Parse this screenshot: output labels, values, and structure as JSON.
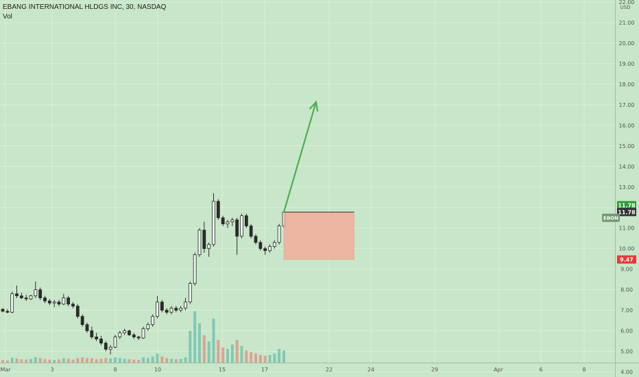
{
  "header": {
    "symbol_line": "EBANG INTERNATIONAL HLDGS INC, 30, NASDAQ",
    "indicator": "Vol"
  },
  "colors": {
    "background": "#c8e6c9",
    "grid": "#dbeedc",
    "up": "#26a69a",
    "down": "#ef5350",
    "candle_body": "#2b2b2b",
    "arrow": "#4caf50",
    "box": "#f4a998",
    "axis_text": "#555555"
  },
  "chart_data": {
    "type": "candlestick",
    "y_unit": "USD",
    "ylim": [
      3.75,
      22.1
    ],
    "y_ticks": [
      "22.00",
      "21.00",
      "20.00",
      "19.00",
      "18.00",
      "17.00",
      "16.00",
      "15.00",
      "14.00",
      "13.00",
      "12.00",
      "11.00",
      "10.00",
      "9.00",
      "8.00",
      "7.00",
      "6.00",
      "5.00",
      "4.00"
    ],
    "x_ticks": [
      "Mar",
      "3",
      "8",
      "10",
      "15",
      "17",
      "22",
      "24",
      "29",
      "Apr",
      "6",
      "8"
    ],
    "price_labels": [
      {
        "label": "11.78",
        "value": 11.78,
        "color": "#2e9e3a"
      },
      {
        "label": "11.78",
        "value": 11.78,
        "color": "#333333"
      },
      {
        "label": "9.47",
        "value": 9.47,
        "color": "#e53935"
      }
    ],
    "symbol_tag": {
      "label": "EBON",
      "value": 11.5
    },
    "candles": [
      [
        7.05,
        7.1,
        6.9,
        6.95
      ],
      [
        6.95,
        7.05,
        6.85,
        6.9
      ],
      [
        6.9,
        7.9,
        6.85,
        7.8
      ],
      [
        7.8,
        8.2,
        7.6,
        7.7
      ],
      [
        7.7,
        7.85,
        7.55,
        7.6
      ],
      [
        7.6,
        7.75,
        7.45,
        7.55
      ],
      [
        7.55,
        7.75,
        7.5,
        7.7
      ],
      [
        7.7,
        8.4,
        7.6,
        8.0
      ],
      [
        8.0,
        8.1,
        7.5,
        7.6
      ],
      [
        7.6,
        7.7,
        7.35,
        7.45
      ],
      [
        7.45,
        7.55,
        7.25,
        7.35
      ],
      [
        7.35,
        7.5,
        7.15,
        7.4
      ],
      [
        7.4,
        7.5,
        7.2,
        7.3
      ],
      [
        7.3,
        7.8,
        7.25,
        7.6
      ],
      [
        7.6,
        7.7,
        7.2,
        7.3
      ],
      [
        7.3,
        7.4,
        7.1,
        7.2
      ],
      [
        7.2,
        7.3,
        6.6,
        6.7
      ],
      [
        6.7,
        6.8,
        6.2,
        6.3
      ],
      [
        6.3,
        6.4,
        5.9,
        6.0
      ],
      [
        6.0,
        6.2,
        5.6,
        5.7
      ],
      [
        5.7,
        5.9,
        5.5,
        5.6
      ],
      [
        5.6,
        5.75,
        5.3,
        5.4
      ],
      [
        5.4,
        5.5,
        5.0,
        5.1
      ],
      [
        5.1,
        5.3,
        4.85,
        5.2
      ],
      [
        5.2,
        5.8,
        5.15,
        5.7
      ],
      [
        5.7,
        6.0,
        5.6,
        5.9
      ],
      [
        5.9,
        6.1,
        5.8,
        6.0
      ],
      [
        6.0,
        6.05,
        5.75,
        5.8
      ],
      [
        5.8,
        5.9,
        5.6,
        5.7
      ],
      [
        5.7,
        5.75,
        5.55,
        5.65
      ],
      [
        5.65,
        6.2,
        5.6,
        6.1
      ],
      [
        6.1,
        6.4,
        6.0,
        6.3
      ],
      [
        6.3,
        6.8,
        6.2,
        6.7
      ],
      [
        6.7,
        7.7,
        6.6,
        7.4
      ],
      [
        7.4,
        7.5,
        6.9,
        7.0
      ],
      [
        7.0,
        7.1,
        6.8,
        6.9
      ],
      [
        6.9,
        7.2,
        6.8,
        7.1
      ],
      [
        7.1,
        7.2,
        6.9,
        7.0
      ],
      [
        7.0,
        7.2,
        6.9,
        7.1
      ],
      [
        7.1,
        7.6,
        7.0,
        7.4
      ],
      [
        7.4,
        8.4,
        7.3,
        8.3
      ],
      [
        8.3,
        9.8,
        8.2,
        9.7
      ],
      [
        9.7,
        11.0,
        9.6,
        10.9
      ],
      [
        10.9,
        11.3,
        9.8,
        10.0
      ],
      [
        10.0,
        10.3,
        9.6,
        10.2
      ],
      [
        10.2,
        12.7,
        10.1,
        12.3
      ],
      [
        12.3,
        12.4,
        11.4,
        11.5
      ],
      [
        11.5,
        11.6,
        11.1,
        11.2
      ],
      [
        11.2,
        11.4,
        11.0,
        11.3
      ],
      [
        11.3,
        11.5,
        11.1,
        11.4
      ],
      [
        11.4,
        11.5,
        9.7,
        10.6
      ],
      [
        10.6,
        11.7,
        10.5,
        11.6
      ],
      [
        11.6,
        11.7,
        11.0,
        11.1
      ],
      [
        11.1,
        11.2,
        10.5,
        10.6
      ],
      [
        10.6,
        10.7,
        10.2,
        10.3
      ],
      [
        10.3,
        10.4,
        9.9,
        10.0
      ],
      [
        10.0,
        10.1,
        9.7,
        9.9
      ],
      [
        9.9,
        10.2,
        9.8,
        10.1
      ],
      [
        10.1,
        10.4,
        10.0,
        10.3
      ],
      [
        10.3,
        11.2,
        10.2,
        11.1
      ],
      [
        11.1,
        11.8,
        11.0,
        11.78
      ]
    ],
    "volumes": [
      0.18,
      0.15,
      0.32,
      0.28,
      0.22,
      0.2,
      0.24,
      0.35,
      0.3,
      0.22,
      0.2,
      0.18,
      0.2,
      0.3,
      0.25,
      0.2,
      0.3,
      0.35,
      0.3,
      0.28,
      0.22,
      0.25,
      0.3,
      0.28,
      0.35,
      0.3,
      0.25,
      0.22,
      0.2,
      0.18,
      0.35,
      0.3,
      0.4,
      0.6,
      0.4,
      0.3,
      0.25,
      0.22,
      0.25,
      0.35,
      2.1,
      3.4,
      2.6,
      1.8,
      1.4,
      2.9,
      1.5,
      1.0,
      0.9,
      1.2,
      1.5,
      1.1,
      0.8,
      0.7,
      0.6,
      0.5,
      0.45,
      0.5,
      0.6,
      0.9,
      0.8
    ],
    "annotations": {
      "arrow": {
        "from": [
          60,
          11.78
        ],
        "to": [
          66,
          17.0
        ]
      },
      "box": {
        "x_from": 60,
        "x_to": 75,
        "top": 11.78,
        "bottom": 9.47
      }
    }
  }
}
